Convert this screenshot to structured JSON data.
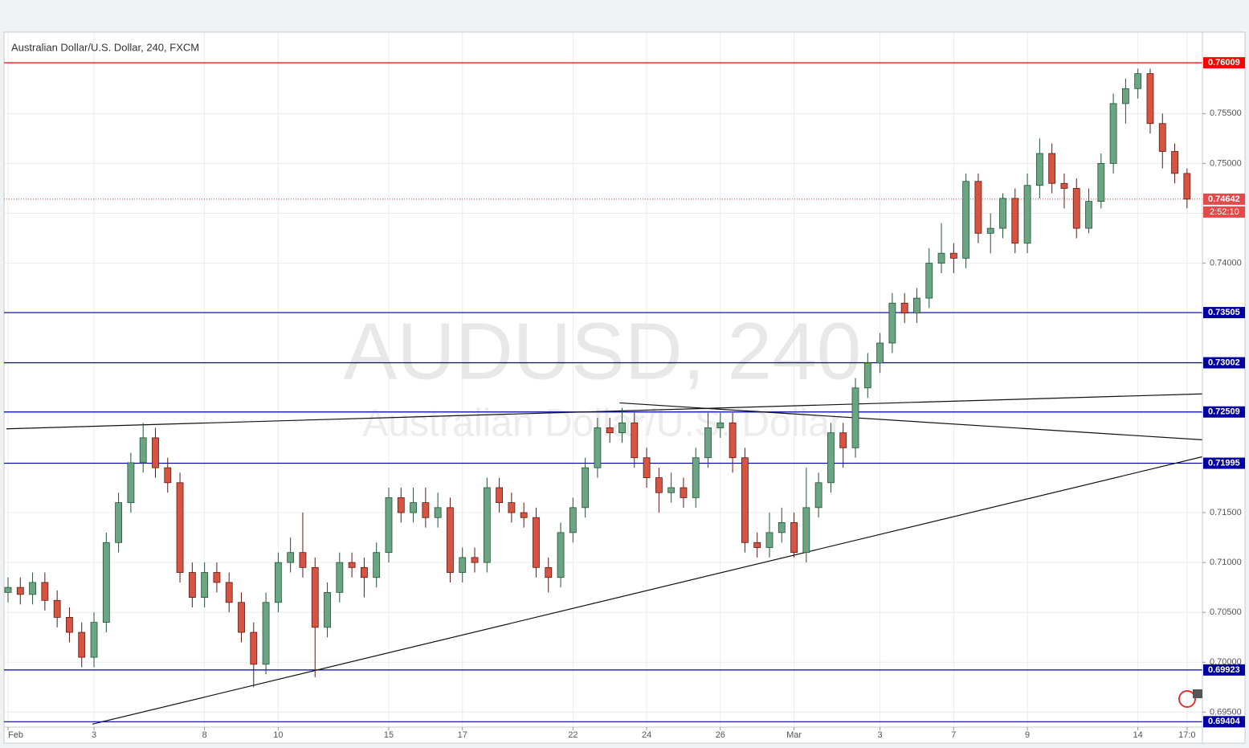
{
  "chart_data": {
    "type": "candlestick",
    "title": "Australian Dollar/U.S. Dollar, 240, FXCM",
    "watermark": "AUDUSD, 240",
    "watermark_subtitle": "Australian Dollar/U.S. Dollar",
    "categories": [
      "Feb",
      null,
      null,
      null,
      null,
      null,
      null,
      "3",
      null,
      null,
      null,
      null,
      null,
      null,
      null,
      null,
      "8",
      null,
      null,
      null,
      null,
      null,
      "10",
      null,
      null,
      null,
      null,
      null,
      null,
      null,
      null,
      "15",
      null,
      null,
      null,
      null,
      null,
      "17",
      null,
      null,
      null,
      null,
      null,
      null,
      null,
      null,
      "22",
      null,
      null,
      null,
      null,
      null,
      "24",
      null,
      null,
      null,
      null,
      null,
      "26",
      null,
      null,
      null,
      null,
      null,
      "Mar",
      null,
      null,
      null,
      null,
      null,
      null,
      "3",
      null,
      null,
      null,
      null,
      null,
      "7",
      null,
      null,
      null,
      null,
      null,
      "9",
      null,
      null,
      null,
      null,
      null,
      null,
      null,
      null,
      "14",
      null,
      null,
      null,
      "17:0"
    ],
    "open": [
      0.707,
      0.7075,
      0.7068,
      0.708,
      0.7062,
      0.7045,
      0.703,
      0.7005,
      0.704,
      0.712,
      0.716,
      0.72,
      0.7225,
      0.7195,
      0.718,
      0.709,
      0.7065,
      0.709,
      0.708,
      0.706,
      0.703,
      0.6998,
      0.706,
      0.71,
      0.711,
      0.7095,
      0.7035,
      0.707,
      0.71,
      0.7095,
      0.7085,
      0.711,
      0.7165,
      0.715,
      0.716,
      0.7145,
      0.7155,
      0.709,
      0.7105,
      0.71,
      0.7175,
      0.716,
      0.715,
      0.7145,
      0.7095,
      0.7085,
      0.713,
      0.7155,
      0.7195,
      0.7235,
      0.723,
      0.724,
      0.7205,
      0.7185,
      0.717,
      0.7175,
      0.7165,
      0.7205,
      0.7235,
      0.724,
      0.7205,
      0.712,
      0.7115,
      0.713,
      0.714,
      0.711,
      0.7155,
      0.718,
      0.723,
      0.7215,
      0.7275,
      0.73,
      0.732,
      0.736,
      0.735,
      0.7365,
      0.74,
      0.741,
      0.7405,
      0.7482,
      0.743,
      0.7435,
      0.7465,
      0.742,
      0.7478,
      0.751,
      0.748,
      0.7475,
      0.7435,
      0.7462,
      0.75,
      0.756,
      0.7575,
      0.759,
      0.754,
      0.7512,
      0.749
    ],
    "high": [
      0.7085,
      0.7085,
      0.709,
      0.709,
      0.7072,
      0.7055,
      0.704,
      0.705,
      0.713,
      0.717,
      0.721,
      0.724,
      0.7235,
      0.7205,
      0.719,
      0.71,
      0.71,
      0.71,
      0.709,
      0.707,
      0.704,
      0.707,
      0.711,
      0.7125,
      0.715,
      0.7105,
      0.708,
      0.711,
      0.711,
      0.7105,
      0.712,
      0.7175,
      0.7175,
      0.7175,
      0.7175,
      0.717,
      0.7165,
      0.7115,
      0.7115,
      0.7185,
      0.7185,
      0.717,
      0.716,
      0.7155,
      0.7105,
      0.714,
      0.7165,
      0.7205,
      0.7245,
      0.7245,
      0.7255,
      0.725,
      0.7215,
      0.7195,
      0.719,
      0.7185,
      0.7215,
      0.725,
      0.725,
      0.725,
      0.7215,
      0.713,
      0.715,
      0.7155,
      0.715,
      0.7195,
      0.719,
      0.724,
      0.724,
      0.7285,
      0.731,
      0.733,
      0.737,
      0.737,
      0.7375,
      0.7415,
      0.744,
      0.742,
      0.749,
      0.749,
      0.745,
      0.747,
      0.7475,
      0.749,
      0.7525,
      0.752,
      0.749,
      0.7485,
      0.7475,
      0.751,
      0.757,
      0.7585,
      0.7595,
      0.7595,
      0.755,
      0.752,
      0.7495
    ],
    "low": [
      0.706,
      0.7058,
      0.7058,
      0.7052,
      0.7035,
      0.702,
      0.6995,
      0.6995,
      0.703,
      0.711,
      0.715,
      0.719,
      0.7185,
      0.717,
      0.708,
      0.7055,
      0.7055,
      0.707,
      0.705,
      0.702,
      0.6975,
      0.6988,
      0.705,
      0.709,
      0.7085,
      0.6985,
      0.7025,
      0.706,
      0.7085,
      0.7065,
      0.7075,
      0.71,
      0.714,
      0.714,
      0.7135,
      0.7135,
      0.708,
      0.708,
      0.709,
      0.709,
      0.715,
      0.714,
      0.7135,
      0.7085,
      0.707,
      0.7075,
      0.712,
      0.7145,
      0.7185,
      0.722,
      0.722,
      0.7195,
      0.7175,
      0.715,
      0.716,
      0.7155,
      0.7155,
      0.7195,
      0.7225,
      0.719,
      0.711,
      0.7105,
      0.7105,
      0.712,
      0.7105,
      0.71,
      0.7145,
      0.717,
      0.7195,
      0.7205,
      0.7265,
      0.729,
      0.731,
      0.734,
      0.734,
      0.7355,
      0.739,
      0.739,
      0.7395,
      0.742,
      0.741,
      0.7425,
      0.741,
      0.741,
      0.7465,
      0.747,
      0.7455,
      0.7425,
      0.743,
      0.7455,
      0.749,
      0.754,
      0.7565,
      0.753,
      0.7495,
      0.748,
      0.7455
    ],
    "close": [
      0.7075,
      0.7068,
      0.708,
      0.7062,
      0.7045,
      0.703,
      0.7005,
      0.704,
      0.712,
      0.716,
      0.72,
      0.7225,
      0.7195,
      0.718,
      0.709,
      0.7065,
      0.709,
      0.708,
      0.706,
      0.703,
      0.6998,
      0.706,
      0.71,
      0.711,
      0.7095,
      0.7035,
      0.707,
      0.71,
      0.7095,
      0.7085,
      0.711,
      0.7165,
      0.715,
      0.716,
      0.7145,
      0.7155,
      0.709,
      0.7105,
      0.71,
      0.7175,
      0.716,
      0.715,
      0.7145,
      0.7095,
      0.7085,
      0.713,
      0.7155,
      0.7195,
      0.7235,
      0.723,
      0.724,
      0.7205,
      0.7185,
      0.717,
      0.7175,
      0.7165,
      0.7205,
      0.7235,
      0.724,
      0.7205,
      0.712,
      0.7115,
      0.713,
      0.714,
      0.711,
      0.7155,
      0.718,
      0.723,
      0.7215,
      0.7275,
      0.73,
      0.732,
      0.736,
      0.735,
      0.7365,
      0.74,
      0.741,
      0.7405,
      0.7482,
      0.743,
      0.7435,
      0.7465,
      0.742,
      0.7478,
      0.751,
      0.748,
      0.7475,
      0.7435,
      0.7462,
      0.75,
      0.756,
      0.7575,
      0.759,
      0.754,
      0.7512,
      0.749,
      0.74642
    ],
    "up_color": "#6ba583",
    "down_color": "#d75442",
    "ylim": [
      0.6935,
      0.763
    ],
    "yticks": [
      {
        "value": 0.695,
        "label": "0.69500"
      },
      {
        "value": 0.7,
        "label": "0.70000"
      },
      {
        "value": 0.705,
        "label": "0.70500"
      },
      {
        "value": 0.71,
        "label": "0.71000"
      },
      {
        "value": 0.715,
        "label": "0.71500"
      },
      {
        "value": 0.72,
        "label": "0.72000"
      },
      {
        "value": 0.725,
        "label": "0.72500"
      },
      {
        "value": 0.73,
        "label": "0.73000"
      },
      {
        "value": 0.735,
        "label": "0.73500"
      },
      {
        "value": 0.74,
        "label": "0.74000"
      },
      {
        "value": 0.745,
        "label": "0.74500"
      },
      {
        "value": 0.75,
        "label": "0.75000"
      },
      {
        "value": 0.755,
        "label": "0.75500"
      }
    ],
    "grid": true,
    "levels": [
      {
        "value": 0.76009,
        "color": "#ff0000"
      },
      {
        "value": 0.73505,
        "color": "#0000a0"
      },
      {
        "value": 0.73002,
        "color": "#0000a0"
      },
      {
        "value": 0.72509,
        "color": "#0000a0"
      },
      {
        "value": 0.71995,
        "color": "#0000a0"
      },
      {
        "value": 0.69923,
        "color": "#0000a0"
      },
      {
        "value": 0.69404,
        "color": "#0000a0"
      }
    ],
    "current_price": {
      "value": 0.74642,
      "color": "#e34a4a"
    },
    "countdown": "2:52:10",
    "trendlines": [
      {
        "x": [
          -0.13,
          97.25
        ],
        "y": [
          0.7234,
          0.7269
        ]
      },
      {
        "x": [
          49.8,
          97.25
        ],
        "y": [
          0.726,
          0.7223
        ]
      },
      {
        "x": [
          6.87,
          97.25
        ],
        "y": [
          0.6938,
          0.7206
        ]
      }
    ]
  }
}
